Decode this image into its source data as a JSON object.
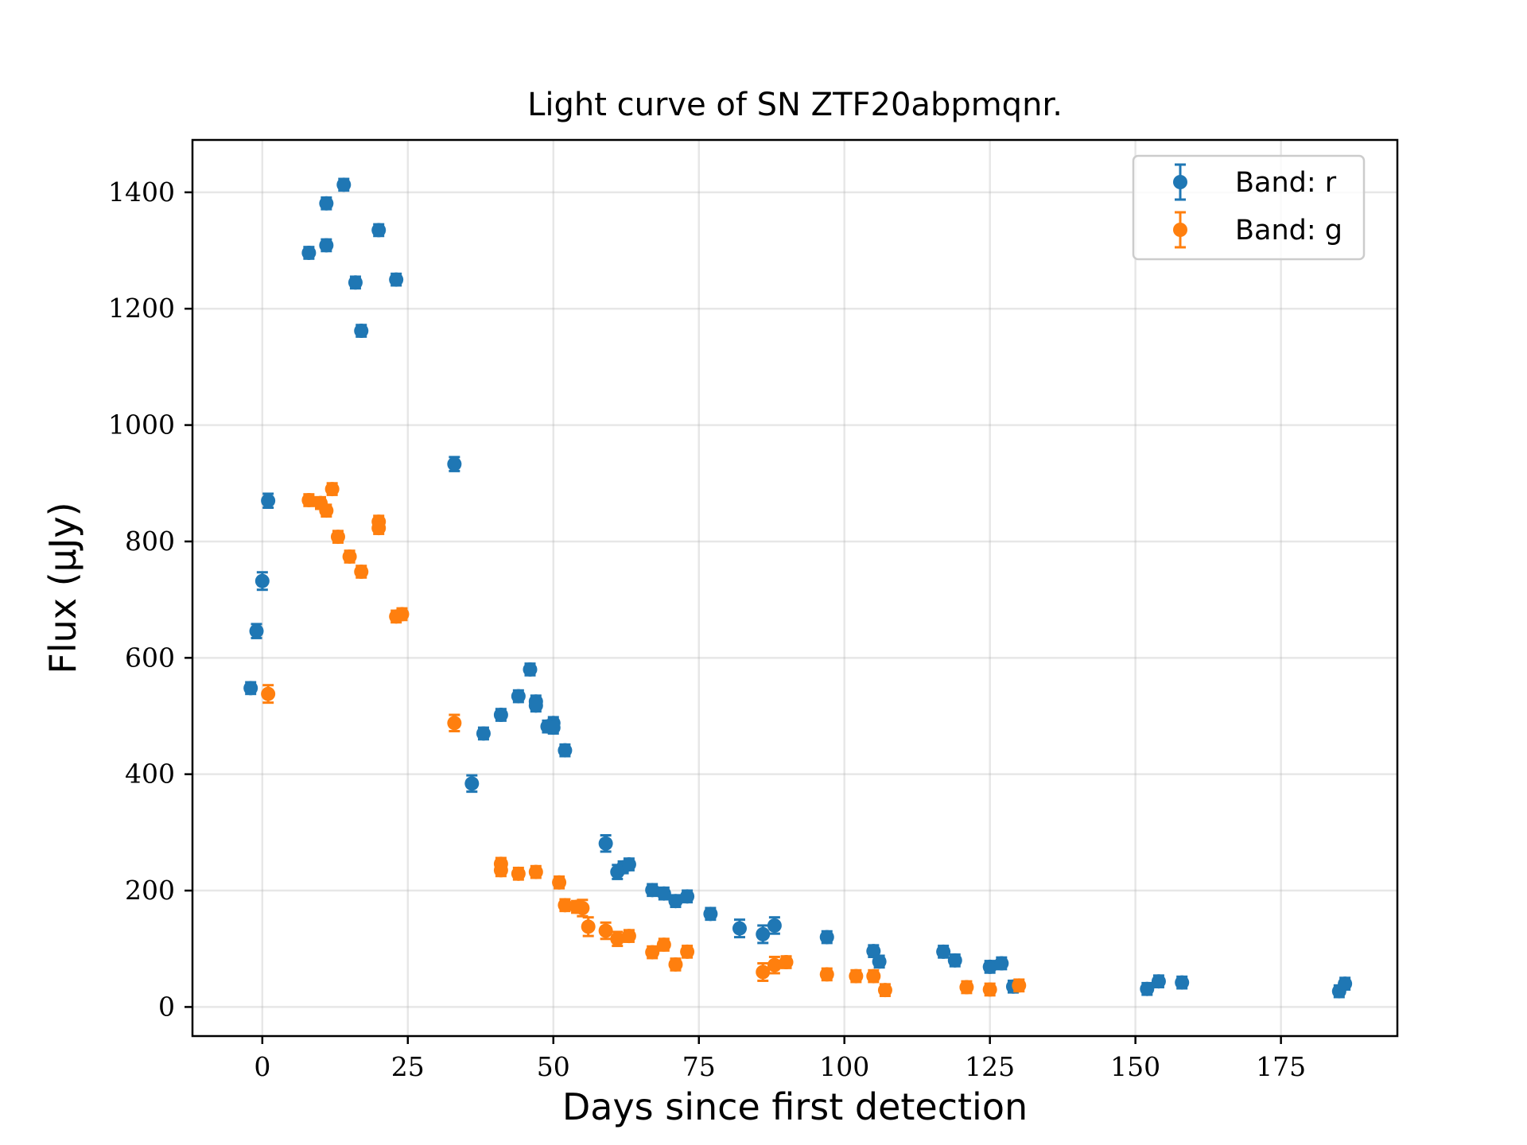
{
  "chart_data": {
    "type": "scatter",
    "title": "Light curve of SN ZTF20abpmqnr.",
    "xlabel": "Days since first detection",
    "ylabel": "Flux (μJy)",
    "xlim": [
      -12,
      195
    ],
    "ylim": [
      -50,
      1490
    ],
    "xticks": [
      0,
      25,
      50,
      75,
      100,
      125,
      150,
      175
    ],
    "yticks": [
      0,
      200,
      400,
      600,
      800,
      1000,
      1200,
      1400
    ],
    "grid": true,
    "legend": "top-right",
    "error_bars": true,
    "series": [
      {
        "name": "Band: r",
        "color": "#1f77b4",
        "points": [
          [
            -2,
            548,
            10
          ],
          [
            -1,
            646,
            12
          ],
          [
            0,
            732,
            15
          ],
          [
            1,
            870,
            12
          ],
          [
            8,
            1296,
            10
          ],
          [
            11,
            1309,
            10
          ],
          [
            11,
            1381,
            10
          ],
          [
            14,
            1413,
            10
          ],
          [
            16,
            1245,
            10
          ],
          [
            17,
            1162,
            10
          ],
          [
            20,
            1335,
            10
          ],
          [
            23,
            1250,
            10
          ],
          [
            33,
            933,
            12
          ],
          [
            36,
            384,
            14
          ],
          [
            38,
            470,
            10
          ],
          [
            41,
            502,
            10
          ],
          [
            44,
            534,
            10
          ],
          [
            46,
            580,
            10
          ],
          [
            47,
            525,
            10
          ],
          [
            47,
            518,
            10
          ],
          [
            49,
            482,
            10
          ],
          [
            50,
            488,
            10
          ],
          [
            50,
            480,
            10
          ],
          [
            52,
            441,
            10
          ],
          [
            59,
            281,
            14
          ],
          [
            61,
            232,
            12
          ],
          [
            62,
            240,
            10
          ],
          [
            63,
            245,
            10
          ],
          [
            67,
            201,
            10
          ],
          [
            69,
            195,
            10
          ],
          [
            71,
            182,
            10
          ],
          [
            73,
            190,
            10
          ],
          [
            77,
            160,
            10
          ],
          [
            82,
            135,
            15
          ],
          [
            86,
            125,
            15
          ],
          [
            88,
            140,
            14
          ],
          [
            97,
            120,
            10
          ],
          [
            105,
            96,
            10
          ],
          [
            106,
            78,
            10
          ],
          [
            117,
            95,
            10
          ],
          [
            119,
            80,
            10
          ],
          [
            125,
            69,
            10
          ],
          [
            127,
            75,
            10
          ],
          [
            129,
            35,
            10
          ],
          [
            152,
            31,
            10
          ],
          [
            154,
            44,
            10
          ],
          [
            158,
            42,
            10
          ],
          [
            185,
            27,
            10
          ],
          [
            186,
            40,
            10
          ]
        ]
      },
      {
        "name": "Band: g",
        "color": "#ff7f0e",
        "points": [
          [
            1,
            538,
            15
          ],
          [
            8,
            871,
            10
          ],
          [
            10,
            866,
            10
          ],
          [
            11,
            853,
            10
          ],
          [
            12,
            890,
            10
          ],
          [
            13,
            808,
            10
          ],
          [
            15,
            774,
            10
          ],
          [
            17,
            748,
            10
          ],
          [
            20,
            834,
            10
          ],
          [
            20,
            823,
            10
          ],
          [
            23,
            671,
            10
          ],
          [
            24,
            675,
            10
          ],
          [
            33,
            488,
            14
          ],
          [
            41,
            246,
            10
          ],
          [
            41,
            235,
            10
          ],
          [
            44,
            229,
            10
          ],
          [
            47,
            232,
            10
          ],
          [
            51,
            214,
            10
          ],
          [
            52,
            175,
            10
          ],
          [
            54,
            172,
            10
          ],
          [
            55,
            170,
            14
          ],
          [
            56,
            138,
            16
          ],
          [
            59,
            131,
            14
          ],
          [
            61,
            117,
            12
          ],
          [
            63,
            122,
            10
          ],
          [
            67,
            94,
            10
          ],
          [
            69,
            107,
            10
          ],
          [
            71,
            73,
            10
          ],
          [
            73,
            95,
            10
          ],
          [
            86,
            60,
            15
          ],
          [
            88,
            72,
            14
          ],
          [
            90,
            77,
            10
          ],
          [
            97,
            56,
            10
          ],
          [
            102,
            53,
            10
          ],
          [
            105,
            53,
            10
          ],
          [
            107,
            29,
            10
          ],
          [
            121,
            34,
            10
          ],
          [
            125,
            30,
            10
          ],
          [
            130,
            37,
            10
          ]
        ]
      }
    ]
  }
}
